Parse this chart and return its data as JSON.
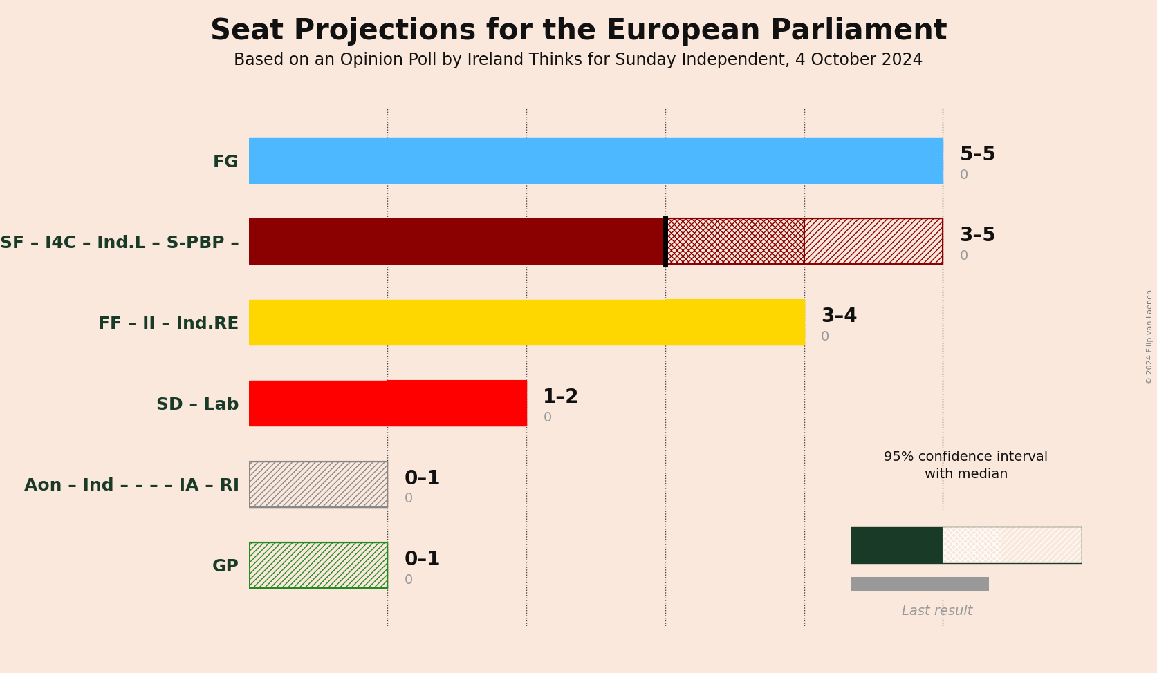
{
  "title": "Seat Projections for the European Parliament",
  "subtitle": "Based on an Opinion Poll by Ireland Thinks for Sunday Independent, 4 October 2024",
  "copyright": "© 2024 Filip van Laenen",
  "background_color": "#fae8dc",
  "parties": [
    {
      "label": "FG",
      "median": 5,
      "low": 5,
      "high": 5,
      "last": 0,
      "solid_color": "#4db8ff",
      "hatch_color": "#4db8ff",
      "hatch_style": "xxxx",
      "has_median_line": false,
      "range_label": "5–5"
    },
    {
      "label": "SF – I4C – Ind.L – S-PBP –",
      "median": 3,
      "low": 3,
      "high": 5,
      "last": 0,
      "solid_color": "#8b0000",
      "hatch_color": "#8b0000",
      "hatch_style_1": "xxxx",
      "hatch_style_2": "////",
      "ci_split": 4,
      "has_median_line": true,
      "range_label": "3–5"
    },
    {
      "label": "FF – II – Ind.RE",
      "median": 3,
      "low": 3,
      "high": 4,
      "last": 0,
      "solid_color": "#FFD700",
      "hatch_color": "#FFD700",
      "hatch_style": "xxxx",
      "has_median_line": false,
      "range_label": "3–4"
    },
    {
      "label": "SD – Lab",
      "median": 1,
      "low": 1,
      "high": 2,
      "last": 0,
      "solid_color": "#FF0000",
      "hatch_color": "#FF0000",
      "hatch_style": "////",
      "has_median_line": false,
      "range_label": "1–2"
    },
    {
      "label": "Aon – Ind – – – – IA – RI",
      "median": 0,
      "low": 0,
      "high": 1,
      "last": 0,
      "solid_color": "#c0c0c0",
      "hatch_color": "#888888",
      "hatch_style": "////",
      "has_median_line": false,
      "range_label": "0–1"
    },
    {
      "label": "GP",
      "median": 0,
      "low": 0,
      "high": 1,
      "last": 0,
      "solid_color": "#ffffff",
      "hatch_color": "#228B22",
      "hatch_style": "////",
      "has_median_line": false,
      "range_label": "0–1"
    }
  ],
  "xlim": [
    0,
    5.75
  ],
  "grid_positions": [
    1,
    2,
    3,
    4,
    5
  ],
  "bar_height": 0.56,
  "last_bar_height": 0.1,
  "last_bar_color": "#999999",
  "title_fontsize": 30,
  "subtitle_fontsize": 17,
  "label_fontsize": 18,
  "range_fontsize": 20,
  "last_fontsize": 14
}
